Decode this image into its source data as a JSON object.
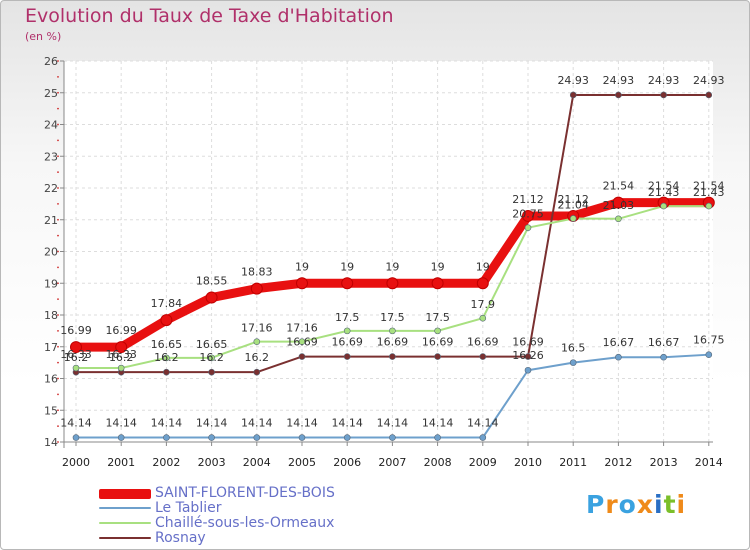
{
  "header": {
    "title": "Evolution du Taux de Taxe d'Habitation",
    "subtitle": "(en %)"
  },
  "chart_data": {
    "type": "line",
    "title": "Evolution du Taux de Taxe d'Habitation",
    "ylabel": "(en %)",
    "xlabel": "",
    "x": [
      "2000",
      "2001",
      "2002",
      "2003",
      "2004",
      "2005",
      "2006",
      "2007",
      "2008",
      "2009",
      "2010",
      "2011",
      "2012",
      "2013",
      "2014"
    ],
    "ylim": [
      14,
      26
    ],
    "yticks": [
      "14",
      "15",
      "16",
      "17",
      "18",
      "19",
      "20",
      "21",
      "22",
      "23",
      "24",
      "25",
      "26"
    ],
    "grid": true,
    "legend": "bottom-left",
    "series": [
      {
        "name": "SAINT-FLORENT-DES-BOIS",
        "color": "#e81010",
        "width": 9,
        "labelOffset": -13,
        "values": [
          16.99,
          16.99,
          17.84,
          18.55,
          18.83,
          19,
          19,
          19,
          19,
          19,
          21.12,
          21.12,
          21.54,
          21.54,
          21.54
        ],
        "labels": [
          "16.99",
          "16.99",
          "17.84",
          "18.55",
          "18.83",
          "19",
          "19",
          "19",
          "19",
          "19",
          "21.12",
          "21.12",
          "21.54",
          "21.54",
          "21.54"
        ]
      },
      {
        "name": "Le Tablier",
        "color": "#6ea0cc",
        "width": 2,
        "labelOffset": -11,
        "values": [
          14.14,
          14.14,
          14.14,
          14.14,
          14.14,
          14.14,
          14.14,
          14.14,
          14.14,
          14.14,
          16.26,
          16.5,
          16.67,
          16.67,
          16.75
        ],
        "labels": [
          "14.14",
          "14.14",
          "14.14",
          "14.14",
          "14.14",
          "14.14",
          "14.14",
          "14.14",
          "14.14",
          "14.14",
          "16.26",
          "16.5",
          "16.67",
          "16.67",
          "16.75"
        ]
      },
      {
        "name": "Chaillé-sous-les-Ormeaux",
        "color": "#a8e080",
        "width": 2,
        "labelOffset": -10,
        "values": [
          16.33,
          16.33,
          16.65,
          16.65,
          17.16,
          17.16,
          17.5,
          17.5,
          17.5,
          17.9,
          20.75,
          21.04,
          21.03,
          21.43,
          21.43
        ],
        "labels": [
          "16.33",
          "16.33",
          "16.65",
          "16.65",
          "17.16",
          "17.16",
          "17.5",
          "17.5",
          "17.5",
          "17.9",
          "20.75",
          "21.04",
          "21.03",
          "21.43",
          "21.43"
        ]
      },
      {
        "name": "Rosnay",
        "color": "#7a3030",
        "width": 2,
        "labelOffset": -11,
        "values": [
          16.2,
          16.2,
          16.2,
          16.2,
          16.2,
          16.69,
          16.69,
          16.69,
          16.69,
          16.69,
          16.69,
          24.93,
          24.93,
          24.93,
          24.93
        ],
        "labels": [
          "16.2",
          "16.2",
          "16.2",
          "16.2",
          "16.2",
          "16.69",
          "16.69",
          "16.69",
          "16.69",
          "16.69",
          "16.69",
          "24.93",
          "24.93",
          "24.93",
          "24.93"
        ]
      }
    ]
  },
  "logo": {
    "text": "Proxiti",
    "colors": [
      "#3aa2e0",
      "#ef8a1a",
      "#3aa2e0",
      "#ef8a1a",
      "#2a6fc4",
      "#7bbf2a",
      "#ef8a1a"
    ]
  }
}
